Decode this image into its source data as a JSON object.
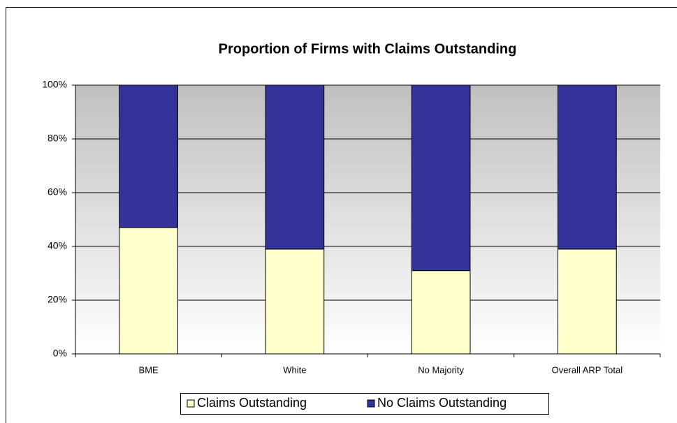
{
  "chart_data": {
    "type": "stacked_bar",
    "title": "Proportion of Firms with Claims Outstanding",
    "categories": [
      "BME",
      "White",
      "No Majority",
      "Overall ARP Total"
    ],
    "series": [
      {
        "name": "Claims Outstanding",
        "color": "#ffffcc",
        "values": [
          47,
          39,
          31,
          39
        ]
      },
      {
        "name": "No Claims Outstanding",
        "color": "#333399",
        "values": [
          53,
          61,
          69,
          61
        ]
      }
    ],
    "ylim": [
      0,
      100
    ],
    "yticks": [
      {
        "value": 0,
        "label": "0%"
      },
      {
        "value": 20,
        "label": "20%"
      },
      {
        "value": 40,
        "label": "40%"
      },
      {
        "value": 60,
        "label": "60%"
      },
      {
        "value": 80,
        "label": "80%"
      },
      {
        "value": 100,
        "label": "100%"
      }
    ],
    "grid": true,
    "legend": "bottom"
  }
}
